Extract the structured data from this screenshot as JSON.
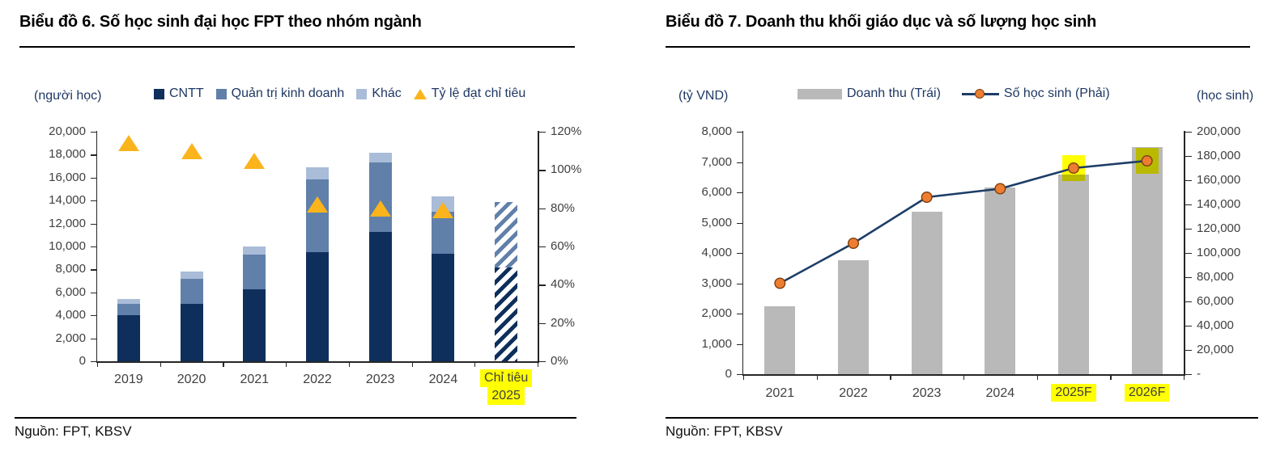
{
  "panels": [
    {
      "title": "Biểu đồ 6. Số học sinh đại học FPT theo nhóm ngành",
      "source": "Nguồn: FPT, KBSV"
    },
    {
      "title": "Biểu đồ 7.  Doanh thu khối giáo dục và số lượng học sinh",
      "source": "Nguồn: FPT, KBSV"
    }
  ],
  "colors": {
    "cntt_navy": "#0e2f5c",
    "business_blue": "#6080aa",
    "other_lightblue": "#a9bcd8",
    "ratio_yellow": "#fbb41c",
    "revenue_gray": "#b9b9b9",
    "line_navy": "#1d3d66",
    "marker_orange": "#ed7d31",
    "marker_outline": "#7e3f10",
    "highlight_yellow": "#ffff00",
    "axis_gray": "#262626",
    "legend_text_navy": "#1f3864"
  },
  "chart_data": [
    {
      "type": "bar",
      "subtype": "stacked-bars-with-percent-scatter",
      "title": "Biểu đồ 6. Số học sinh đại học FPT theo nhóm ngành",
      "unit_left": "(người học)",
      "categories": [
        "2019",
        "2020",
        "2021",
        "2022",
        "2023",
        "2024",
        "Chỉ tiêu 2025"
      ],
      "target_label_lines": [
        "Chỉ tiêu",
        "2025"
      ],
      "hatched_category_index": 6,
      "series": [
        {
          "name": "CNTT",
          "color": "#0e2f5c",
          "values": [
            4000,
            5000,
            6300,
            9500,
            11300,
            9400,
            8200
          ]
        },
        {
          "name": "Quản trị kinh doanh",
          "color": "#6080aa",
          "values": [
            1000,
            2200,
            3000,
            6350,
            6000,
            3600,
            5700
          ]
        },
        {
          "name": "Khác",
          "color": "#a9bcd8",
          "values": [
            400,
            650,
            700,
            1050,
            850,
            1350,
            0
          ]
        }
      ],
      "scatter": {
        "name": "Tỷ lệ đạt chỉ tiêu",
        "color": "#fbb41c",
        "axis": "right",
        "values": [
          114,
          110,
          105,
          82,
          80,
          79,
          null
        ]
      },
      "y_left": {
        "min": 0,
        "max": 20000,
        "step": 2000
      },
      "y_right": {
        "min": 0,
        "max": 120,
        "step": 20,
        "suffix": "%"
      },
      "legend": [
        {
          "label": "CNTT",
          "swatch": "square",
          "color": "#0e2f5c",
          "icon": "cntt-swatch-icon"
        },
        {
          "label": "Quản trị kinh doanh",
          "swatch": "square",
          "color": "#6080aa",
          "icon": "business-swatch-icon"
        },
        {
          "label": "Khác",
          "swatch": "square",
          "color": "#a9bcd8",
          "icon": "other-swatch-icon"
        },
        {
          "label": "Tỷ lệ đạt chỉ tiêu",
          "swatch": "triangle",
          "color": "#fbb41c",
          "icon": "ratio-triangle-icon"
        }
      ],
      "grid": false,
      "legend_position": "top"
    },
    {
      "type": "bar",
      "subtype": "bars-with-line",
      "title": "Biểu đồ 7.  Doanh thu khối giáo dục và số lượng học sinh",
      "unit_left": "(tỷ VND)",
      "unit_right": "(học sinh)",
      "categories": [
        "2021",
        "2022",
        "2023",
        "2024",
        "2025F",
        "2026F"
      ],
      "highlighted_category_indices": [
        4,
        5
      ],
      "bar_series": {
        "name": "Doanh thu (Trái)",
        "axis": "left",
        "color": "#b9b9b9",
        "values": [
          2250,
          3750,
          5350,
          6150,
          6600,
          7500
        ]
      },
      "line_series": {
        "name": "Số học sinh (Phải)",
        "axis": "right",
        "color": "#1d3d66",
        "marker_color": "#ed7d31",
        "values": [
          75000,
          108000,
          146000,
          153000,
          170000,
          176000
        ],
        "highlight_point_indices": [
          4,
          5
        ]
      },
      "y_left": {
        "min": 0,
        "max": 8000,
        "step": 1000
      },
      "y_right": {
        "min": 0,
        "max": 200000,
        "step": 20000,
        "zero_label": "-"
      },
      "legend": [
        {
          "label": "Doanh thu (Trái)",
          "swatch": "bar",
          "color": "#b9b9b9",
          "icon": "revenue-bar-swatch-icon"
        },
        {
          "label": "Số học sinh (Phải)",
          "swatch": "line-marker",
          "color": "#1d3d66",
          "icon": "students-line-swatch-icon"
        }
      ],
      "grid": false,
      "legend_position": "top"
    }
  ]
}
